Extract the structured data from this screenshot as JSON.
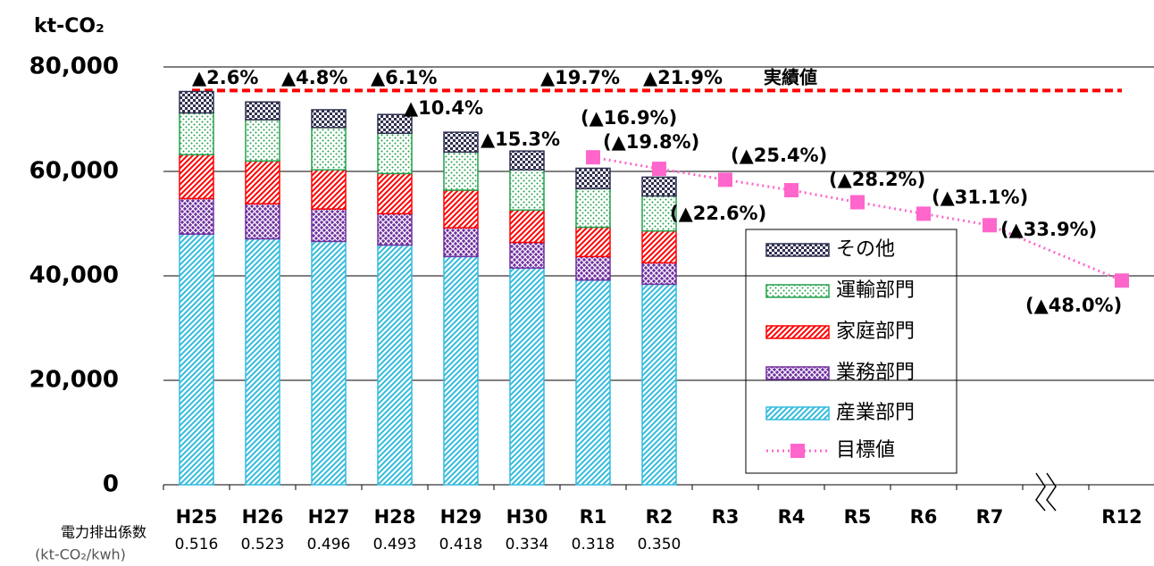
{
  "chart_data": {
    "type": "bar",
    "stacked": true,
    "y_label": "kt-CO₂",
    "categories": [
      "H25",
      "H26",
      "H27",
      "H28",
      "H29",
      "H30",
      "R1",
      "R2",
      "R3",
      "R4",
      "R5",
      "R6",
      "R7",
      "R12"
    ],
    "ylim": [
      0,
      80000
    ],
    "yticks": [
      {
        "value": 0,
        "label": "0"
      },
      {
        "value": 20000,
        "label": "20,000"
      },
      {
        "value": 40000,
        "label": "40,000"
      },
      {
        "value": 60000,
        "label": "60,000"
      },
      {
        "value": 80000,
        "label": "80,000"
      }
    ],
    "grid": true,
    "legend": "right",
    "series": [
      {
        "name": "産業部門",
        "color": "#33bbdd",
        "pattern": "stripes",
        "values": [
          48000,
          47100,
          46600,
          45900,
          43700,
          41500,
          39200,
          38400,
          null,
          null,
          null,
          null,
          null,
          null
        ]
      },
      {
        "name": "業務部門",
        "color": "#7030a0",
        "pattern": "crosshatch",
        "values": [
          6800,
          6700,
          6200,
          6000,
          5500,
          4900,
          4500,
          4100,
          null,
          null,
          null,
          null,
          null,
          null
        ]
      },
      {
        "name": "家庭部門",
        "color": "#ff0000",
        "pattern": "stripes",
        "values": [
          8400,
          8200,
          7500,
          7700,
          7200,
          6200,
          5600,
          6100,
          null,
          null,
          null,
          null,
          null,
          null
        ]
      },
      {
        "name": "運輸部門",
        "color": "#22a04a",
        "pattern": "dots",
        "values": [
          8000,
          7900,
          8100,
          7700,
          7300,
          7700,
          7400,
          6700,
          null,
          null,
          null,
          null,
          null,
          null
        ]
      },
      {
        "name": "その他",
        "color": "#2f3050",
        "pattern": "checks",
        "values": [
          4100,
          3400,
          3400,
          3600,
          3800,
          3600,
          3900,
          3600,
          null,
          null,
          null,
          null,
          null,
          null
        ]
      },
      {
        "name": "目標値",
        "type": "line",
        "color": "#ff66cc",
        "values": [
          null,
          null,
          null,
          null,
          null,
          null,
          62700,
          60500,
          58400,
          56400,
          54100,
          51900,
          49700,
          39100
        ]
      }
    ],
    "reference_line": {
      "label": "実績値",
      "value": 75500,
      "color": "#ff0000"
    },
    "annotations": [
      "▲2.6%",
      "▲4.8%",
      "▲6.1%",
      "▲10.4%",
      "▲15.3%",
      "▲19.7%",
      "▲21.9%",
      "(▲16.9%)",
      "(▲19.8%)",
      "(▲22.6%)",
      "(▲25.4%)",
      "(▲28.2%)",
      "(▲31.1%)",
      "(▲33.9%)",
      "(▲48.0%)"
    ],
    "emission_factors": {
      "label": "電力排出係数",
      "unit": "(kt-CO₂/kwh)",
      "values": [
        "0.516",
        "0.523",
        "0.496",
        "0.493",
        "0.418",
        "0.334",
        "0.318",
        "0.350"
      ]
    }
  }
}
